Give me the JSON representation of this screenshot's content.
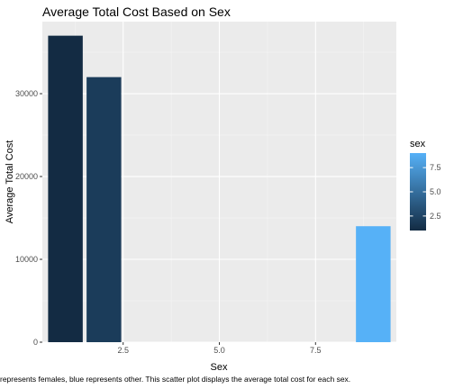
{
  "chart_data": {
    "type": "bar",
    "title": "Average Total Cost Based on Sex",
    "xlabel": "Sex",
    "ylabel": "Average Total Cost",
    "x": [
      1,
      2,
      9
    ],
    "values": [
      37000,
      32000,
      14000
    ],
    "fill_values": [
      1,
      2,
      9
    ],
    "xlim": [
      0.4,
      9.6
    ],
    "ylim": [
      0,
      38700
    ],
    "xticks": [
      2.5,
      5.0,
      7.5
    ],
    "xtick_labels": [
      "2.5",
      "5.0",
      "7.5"
    ],
    "yticks": [
      0,
      10000,
      20000,
      30000
    ],
    "ytick_labels": [
      "0",
      "10000",
      "20000",
      "30000"
    ],
    "grid": true,
    "legend": {
      "title": "sex",
      "placement": "right",
      "type": "colorbar",
      "range": [
        1,
        9
      ],
      "ticks": [
        2.5,
        5.0,
        7.5
      ],
      "tick_labels": [
        "2.5",
        "5.0",
        "7.5"
      ],
      "low_color": "#132B43",
      "high_color": "#56B1F7"
    }
  },
  "caption": "represents females, blue represents other. This scatter plot displays the average total cost for each sex."
}
